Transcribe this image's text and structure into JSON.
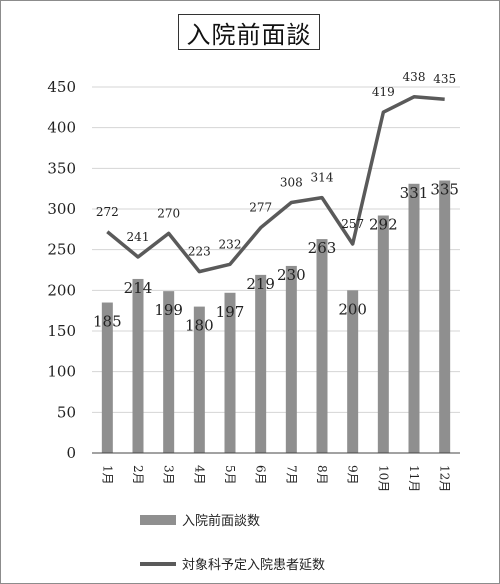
{
  "title": "入院前面談",
  "chart_data": {
    "type": "bar+line",
    "categories": [
      "1月",
      "2月",
      "3月",
      "4月",
      "5月",
      "6月",
      "7月",
      "8月",
      "9月",
      "10月",
      "11月",
      "12月"
    ],
    "series": [
      {
        "name": "入院前面談数",
        "type": "bar",
        "color": "#8f8f8f",
        "values": [
          185,
          214,
          199,
          180,
          197,
          219,
          230,
          263,
          200,
          292,
          331,
          335
        ]
      },
      {
        "name": "対象科予定入院患者延数",
        "type": "line",
        "color": "#5a5a5a",
        "values": [
          272,
          241,
          270,
          223,
          232,
          277,
          308,
          314,
          257,
          419,
          438,
          435
        ]
      }
    ],
    "ylim": [
      0,
      450
    ],
    "yticks": [
      "0",
      "50",
      "100",
      "150",
      "200",
      "250",
      "300",
      "350",
      "400",
      "450"
    ],
    "grid": true,
    "legend_position": "bottom"
  },
  "legend": {
    "bar_label": "入院前面談数",
    "line_label": "対象科予定入院患者延数"
  }
}
